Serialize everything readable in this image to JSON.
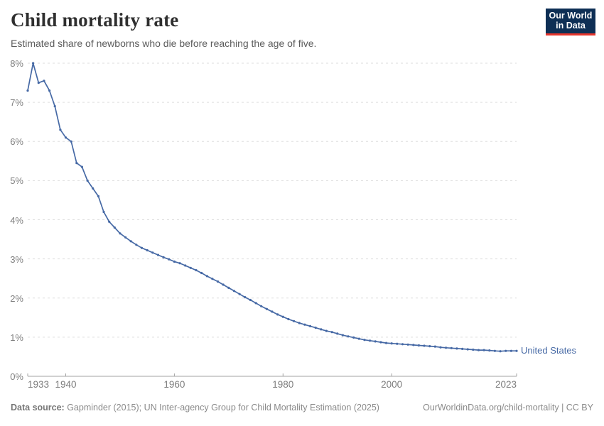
{
  "header": {
    "title": "Child mortality rate",
    "subtitle": "Estimated share of newborns who die before reaching the age of five.",
    "logo": {
      "line1": "Our World",
      "line2": "in Data"
    }
  },
  "colors": {
    "series_blue": "#4669a5",
    "logo_navy": "#0e2f55",
    "logo_red": "#e5352c",
    "gridline": "#dddddd",
    "axis": "#a3a3a3",
    "tick_label": "#7e7e7e"
  },
  "chart_data": {
    "type": "line",
    "title": "Child mortality rate",
    "subtitle": "Estimated share of newborns who die before reaching the age of five.",
    "xlabel": "",
    "ylabel": "",
    "xlim": [
      1933,
      2023
    ],
    "ylim": [
      0,
      8
    ],
    "x_ticks": [
      1933,
      1940,
      1960,
      1980,
      2000,
      2023
    ],
    "y_ticks": [
      0,
      1,
      2,
      3,
      4,
      5,
      6,
      7,
      8
    ],
    "y_tick_suffix": "%",
    "grid": "horizontal-dashed",
    "legend_position": "end-of-line-label",
    "series": [
      {
        "name": "United States",
        "color": "#4669a5",
        "years": [
          1933,
          1934,
          1935,
          1936,
          1937,
          1938,
          1939,
          1940,
          1941,
          1942,
          1943,
          1944,
          1945,
          1946,
          1947,
          1948,
          1949,
          1950,
          1951,
          1952,
          1953,
          1954,
          1955,
          1956,
          1957,
          1958,
          1959,
          1960,
          1961,
          1962,
          1963,
          1964,
          1965,
          1966,
          1967,
          1968,
          1969,
          1970,
          1971,
          1972,
          1973,
          1974,
          1975,
          1976,
          1977,
          1978,
          1979,
          1980,
          1981,
          1982,
          1983,
          1984,
          1985,
          1986,
          1987,
          1988,
          1989,
          1990,
          1991,
          1992,
          1993,
          1994,
          1995,
          1996,
          1997,
          1998,
          1999,
          2000,
          2001,
          2002,
          2003,
          2004,
          2005,
          2006,
          2007,
          2008,
          2009,
          2010,
          2011,
          2012,
          2013,
          2014,
          2015,
          2016,
          2017,
          2018,
          2019,
          2020,
          2021,
          2022,
          2023
        ],
        "values": [
          7.3,
          8.0,
          7.5,
          7.55,
          7.3,
          6.9,
          6.3,
          6.1,
          6.0,
          5.45,
          5.35,
          5.0,
          4.8,
          4.6,
          4.2,
          3.95,
          3.8,
          3.65,
          3.55,
          3.45,
          3.36,
          3.28,
          3.22,
          3.16,
          3.1,
          3.04,
          2.99,
          2.93,
          2.89,
          2.83,
          2.77,
          2.71,
          2.64,
          2.56,
          2.49,
          2.42,
          2.34,
          2.26,
          2.18,
          2.1,
          2.02,
          1.95,
          1.87,
          1.79,
          1.72,
          1.65,
          1.58,
          1.52,
          1.46,
          1.41,
          1.36,
          1.32,
          1.28,
          1.24,
          1.2,
          1.16,
          1.13,
          1.09,
          1.05,
          1.02,
          0.99,
          0.96,
          0.93,
          0.91,
          0.89,
          0.87,
          0.85,
          0.84,
          0.83,
          0.82,
          0.81,
          0.8,
          0.79,
          0.78,
          0.77,
          0.76,
          0.74,
          0.73,
          0.72,
          0.71,
          0.7,
          0.69,
          0.68,
          0.67,
          0.67,
          0.66,
          0.65,
          0.64,
          0.65,
          0.65,
          0.65
        ]
      }
    ]
  },
  "footer": {
    "datasource_label": "Data source:",
    "datasource_text": " Gapminder (2015); UN Inter-agency Group for Child Mortality Estimation (2025)",
    "link_text": "OurWorldinData.org/child-mortality | CC BY"
  }
}
